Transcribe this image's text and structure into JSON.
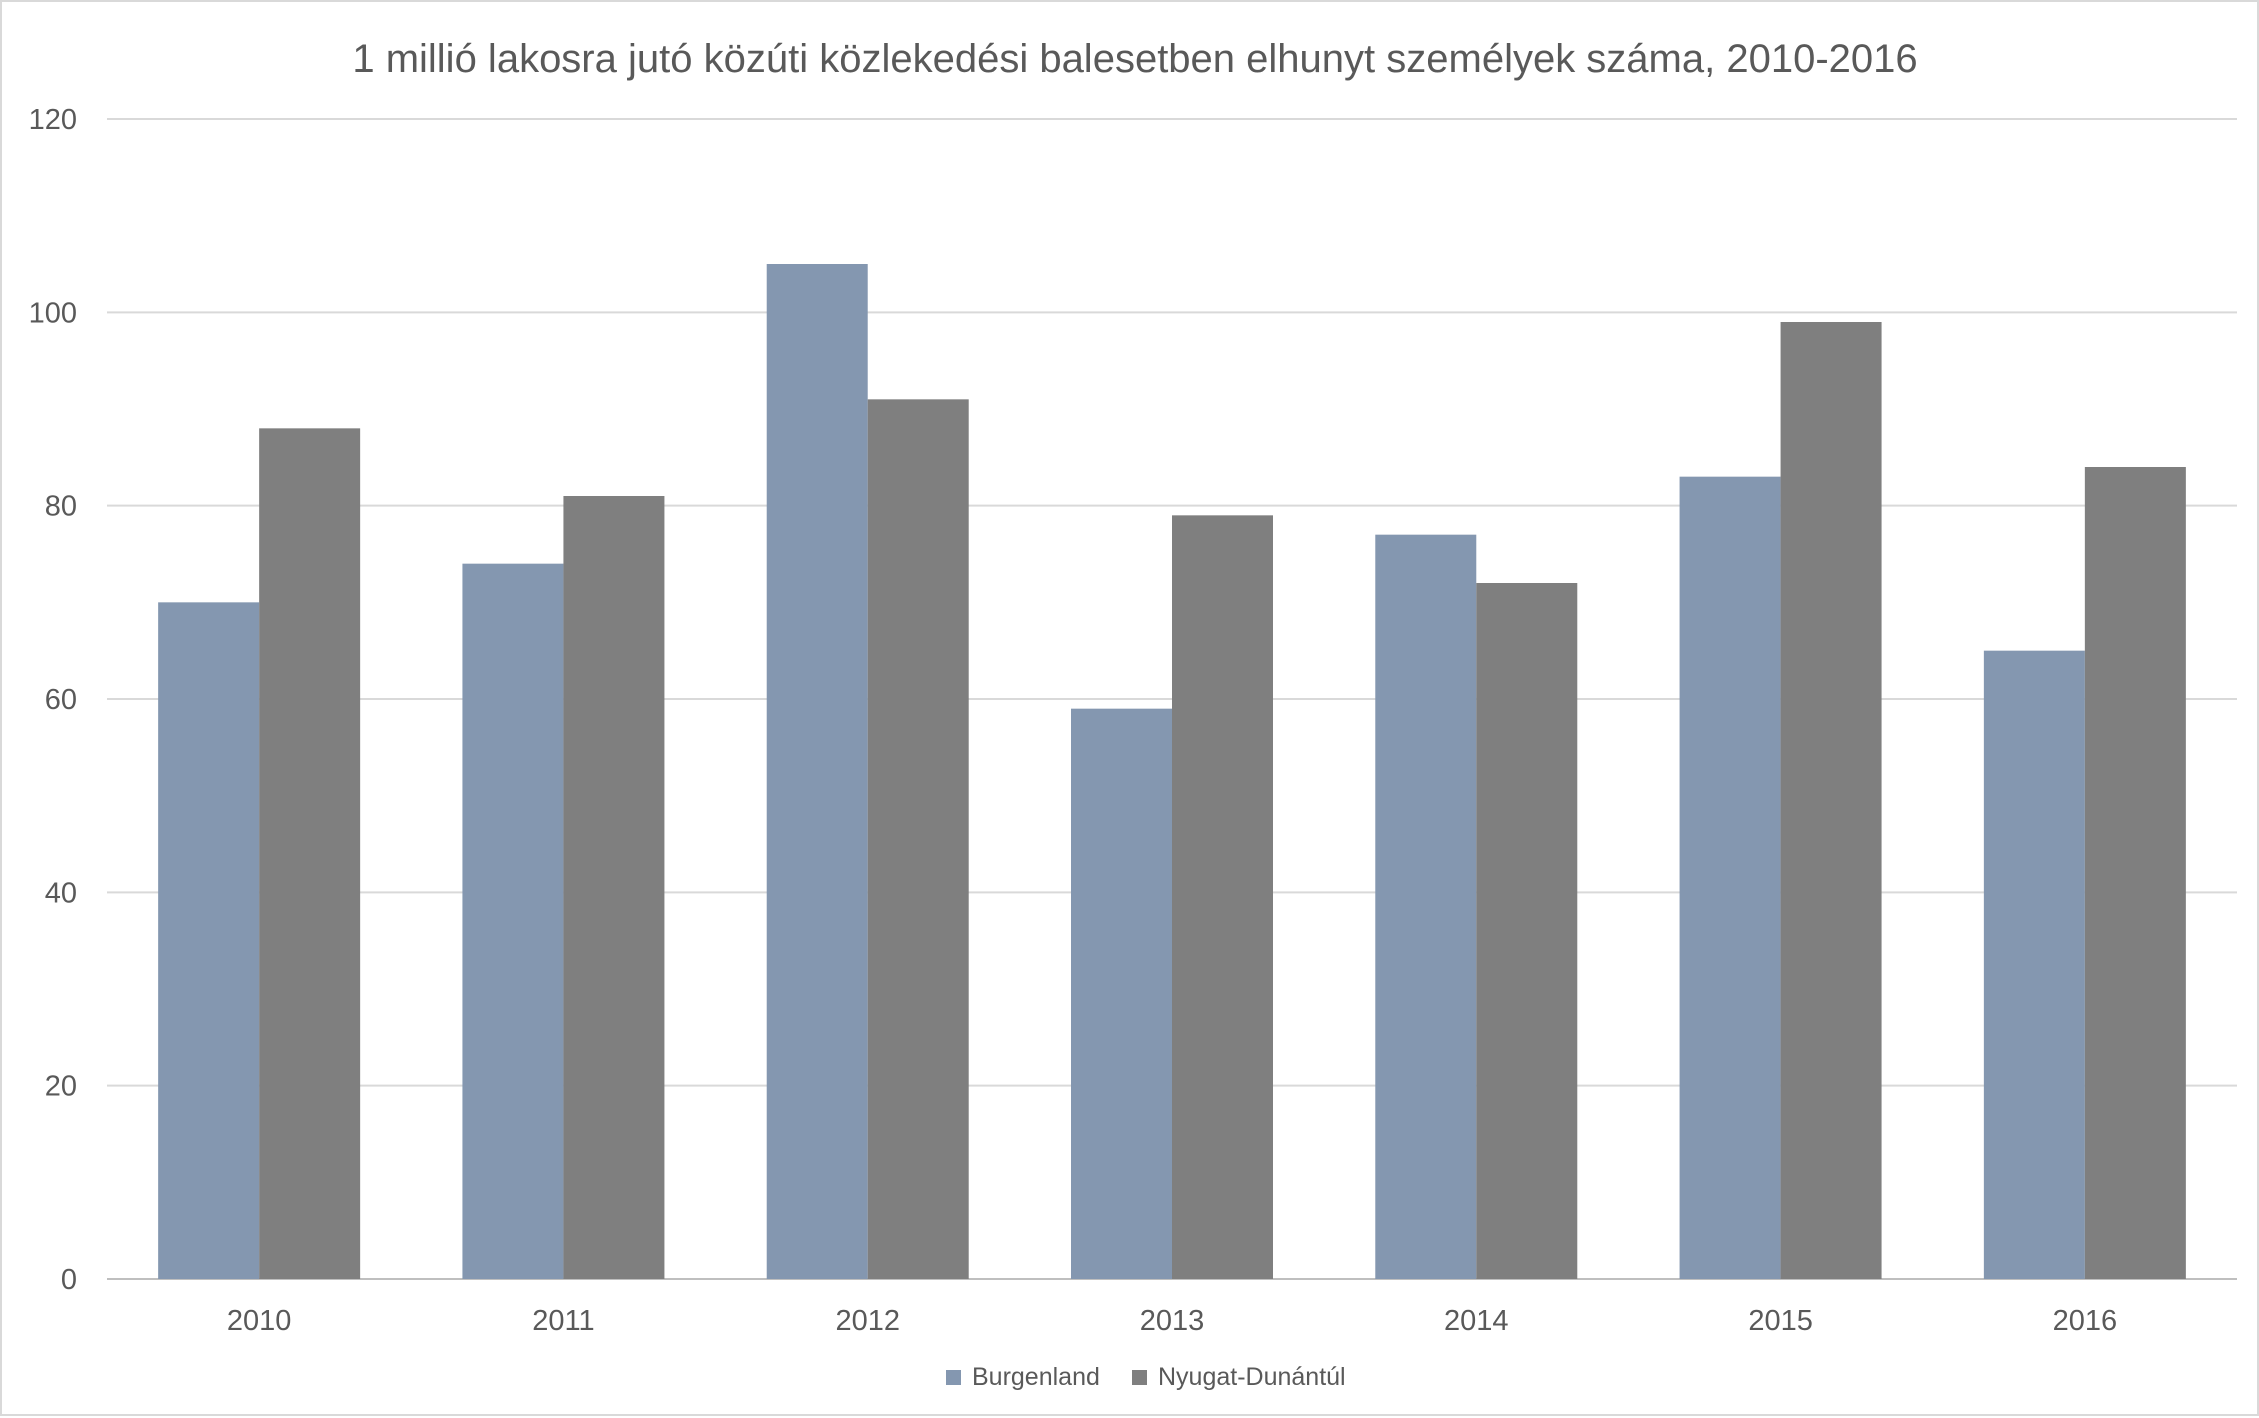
{
  "chart_data": {
    "type": "bar",
    "title": "1 millió lakosra jutó közúti közlekedési balesetben elhunyt személyek száma, 2010-2016",
    "xlabel": "",
    "ylabel": "",
    "categories": [
      "2010",
      "2011",
      "2012",
      "2013",
      "2014",
      "2015",
      "2016"
    ],
    "series": [
      {
        "name": "Burgenland",
        "color": "#8497b0",
        "values": [
          70,
          74,
          105,
          59,
          77,
          83,
          65
        ]
      },
      {
        "name": "Nyugat-Dunántúl",
        "color": "#7f7f7f",
        "values": [
          88,
          81,
          91,
          79,
          72,
          99,
          84
        ]
      }
    ],
    "ylim": [
      0,
      120
    ],
    "yticks": [
      0,
      20,
      40,
      60,
      80,
      100,
      120
    ],
    "grid": true,
    "legend_position": "bottom"
  }
}
